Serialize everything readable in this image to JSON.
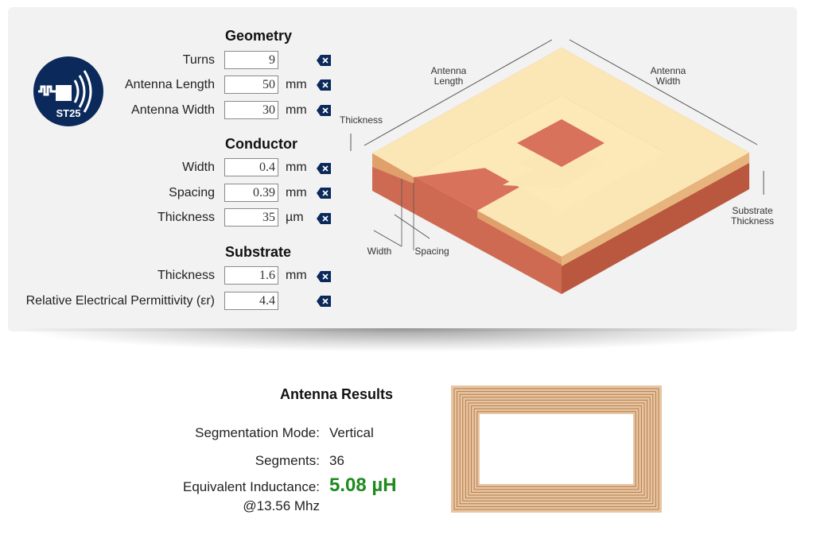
{
  "logo": {
    "text": "ST25",
    "icon": "nfc-chip-icon"
  },
  "geometry": {
    "title": "Geometry",
    "fields": [
      {
        "label": "Turns",
        "value": "9",
        "unit": ""
      },
      {
        "label": "Antenna Length",
        "value": "50",
        "unit": "mm"
      },
      {
        "label": "Antenna Width",
        "value": "30",
        "unit": "mm"
      }
    ]
  },
  "conductor": {
    "title": "Conductor",
    "fields": [
      {
        "label": "Width",
        "value": "0.4",
        "unit": "mm"
      },
      {
        "label": "Spacing",
        "value": "0.39",
        "unit": "mm"
      },
      {
        "label": "Thickness",
        "value": "35",
        "unit": "µm"
      }
    ]
  },
  "substrate": {
    "title": "Substrate",
    "fields": [
      {
        "label": "Thickness",
        "value": "1.6",
        "unit": "mm"
      },
      {
        "label": "Relative Electrical Permittivity (εr)",
        "value": "4.4",
        "unit": ""
      }
    ]
  },
  "diagram": {
    "antenna_length": [
      "Antenna",
      "Length"
    ],
    "antenna_width": [
      "Antenna",
      "Width"
    ],
    "thickness": "Thickness",
    "substrate_thickness": [
      "Substrate",
      "Thickness"
    ],
    "width": "Width",
    "spacing": "Spacing"
  },
  "results": {
    "title": "Antenna Results",
    "segmentation_label": "Segmentation Mode:",
    "segmentation_value": "Vertical",
    "segments_label": "Segments:",
    "segments_value": "36",
    "inductance_label": "Equivalent Inductance:",
    "inductance_freq": "@13.56 Mhz",
    "inductance_value": "5.08 µH"
  },
  "colors": {
    "accent_green": "#1f8a1f",
    "logo_blue": "#0b2a5b",
    "copper_top": "#fbe7b5",
    "substrate": "#cf6a52"
  }
}
